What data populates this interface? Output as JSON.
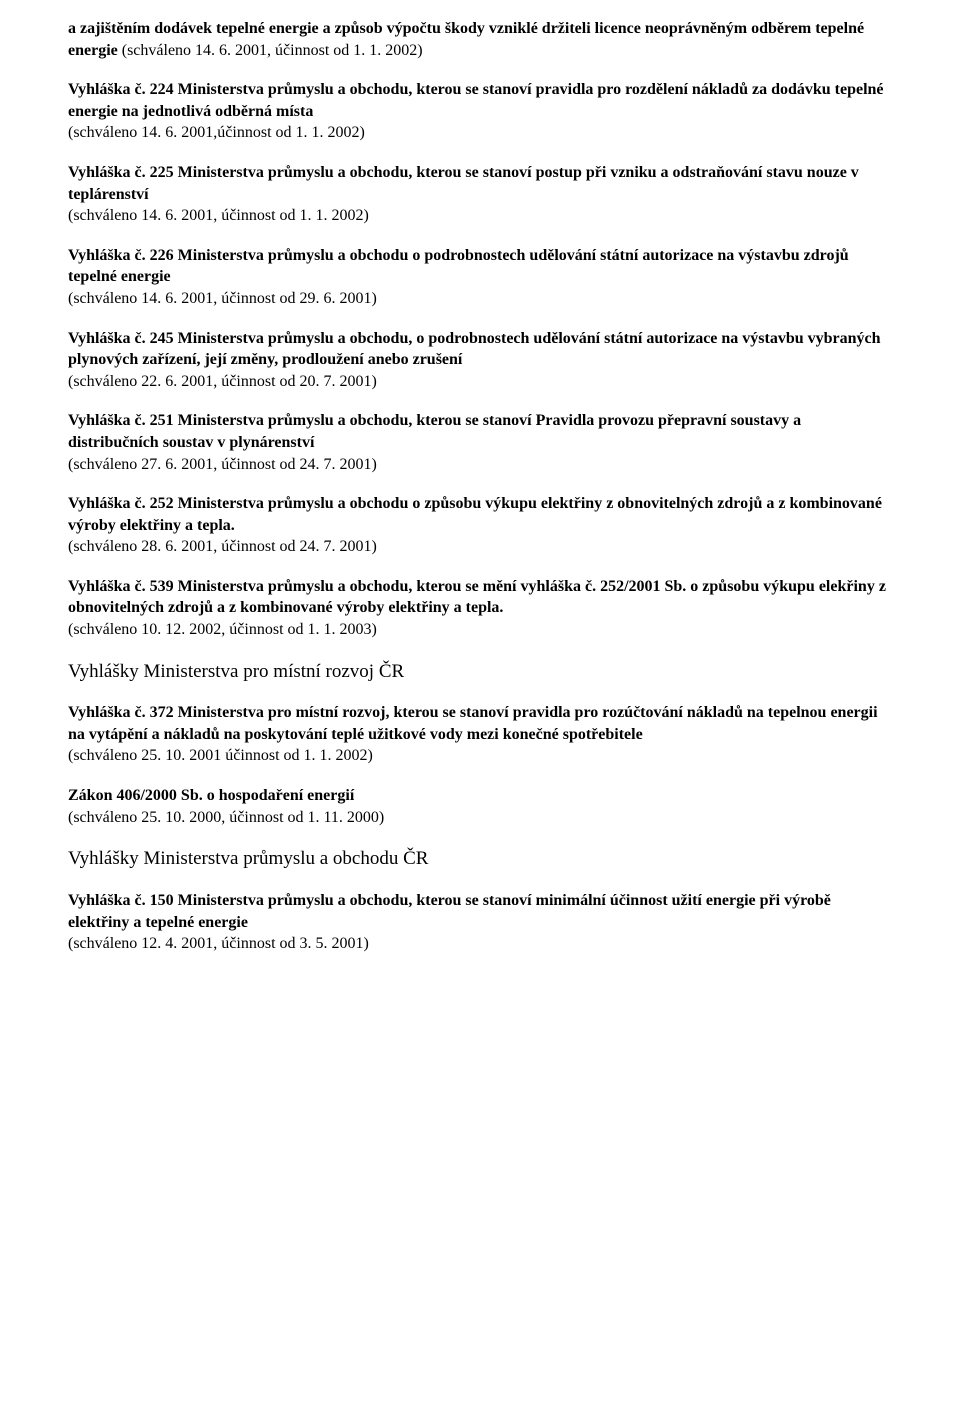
{
  "entries": [
    {
      "title": "a zajištěním dodávek tepelné energie a způsob výpočtu škody vzniklé držiteli licence neoprávněným odběrem tepelné energie",
      "suffix": "  (schváleno 14. 6. 2001, účinnost od 1. 1. 2002)",
      "note": null
    },
    {
      "title": "Vyhláška č. 224 Ministerstva průmyslu a obchodu, kterou se stanoví pravidla pro rozdělení nákladů za dodávku tepelné energie na jednotlivá odběrná místa",
      "suffix": null,
      "note": "(schváleno 14. 6. 2001,účinnost od 1. 1. 2002)"
    },
    {
      "title": "Vyhláška č. 225 Ministerstva průmyslu a obchodu, kterou se stanoví postup při vzniku a odstraňování stavu nouze v teplárenství",
      "suffix": null,
      "note": "(schváleno 14. 6. 2001, účinnost od 1. 1. 2002)"
    },
    {
      "title": "Vyhláška č. 226 Ministerstva průmyslu a obchodu o podrobnostech udělování státní autorizace na výstavbu zdrojů tepelné energie",
      "suffix": null,
      "note": "(schváleno 14. 6. 2001, účinnost od 29. 6. 2001)"
    },
    {
      "title": "Vyhláška č. 245 Ministerstva průmyslu a obchodu, o podrobnostech udělování státní autorizace na výstavbu vybraných plynových zařízení, její změny, prodloužení anebo zrušení",
      "suffix": null,
      "note": "(schváleno 22. 6. 2001, účinnost od 20. 7. 2001)"
    },
    {
      "title": "Vyhláška č. 251 Ministerstva průmyslu a obchodu, kterou se stanoví Pravidla provozu přepravní soustavy a distribučních soustav v plynárenství",
      "suffix": null,
      "note": "(schváleno 27. 6. 2001, účinnost od 24. 7. 2001)"
    },
    {
      "title": "Vyhláška č. 252 Ministerstva průmyslu a obchodu o způsobu výkupu elektřiny z obnovitelných zdrojů a z kombinované výroby elektřiny a tepla.",
      "suffix": null,
      "note": "(schváleno 28. 6. 2001, účinnost od 24. 7. 2001)"
    },
    {
      "title": "Vyhláška č. 539 Ministerstva průmyslu a obchodu, kterou se mění vyhláška č. 252/2001 Sb. o způsobu výkupu elekřiny z obnovitelných zdrojů a z kombinované výroby elektřiny a tepla.",
      "suffix": null,
      "note": "(schváleno 10. 12. 2002, účinnost od 1. 1. 2003)"
    }
  ],
  "section1_heading": "Vyhlášky Ministerstva pro místní rozvoj ČR",
  "section1_entries": [
    {
      "title": "Vyhláška č. 372 Ministerstva pro místní rozvoj, kterou se stanoví pravidla pro rozúčtování nákladů na tepelnou energii na vytápění a nákladů na poskytování teplé užitkové vody mezi konečné spotřebitele",
      "suffix": null,
      "note": "(schváleno 25. 10. 2001 účinnost od 1. 1. 2002)"
    },
    {
      "title": "Zákon 406/2000 Sb. o hospodaření energií",
      "suffix": null,
      "note": "(schváleno 25. 10. 2000, účinnost od 1. 11. 2000)"
    }
  ],
  "section2_heading": "Vyhlášky Ministerstva průmyslu a obchodu ČR",
  "section2_entries": [
    {
      "title": "Vyhláška č. 150 Ministerstva průmyslu a obchodu, kterou se stanoví minimální účinnost užití energie při výrobě elektřiny a tepelné energie",
      "suffix": null,
      "note": "(schváleno 12. 4. 2001, účinnost od 3. 5. 2001)"
    }
  ]
}
